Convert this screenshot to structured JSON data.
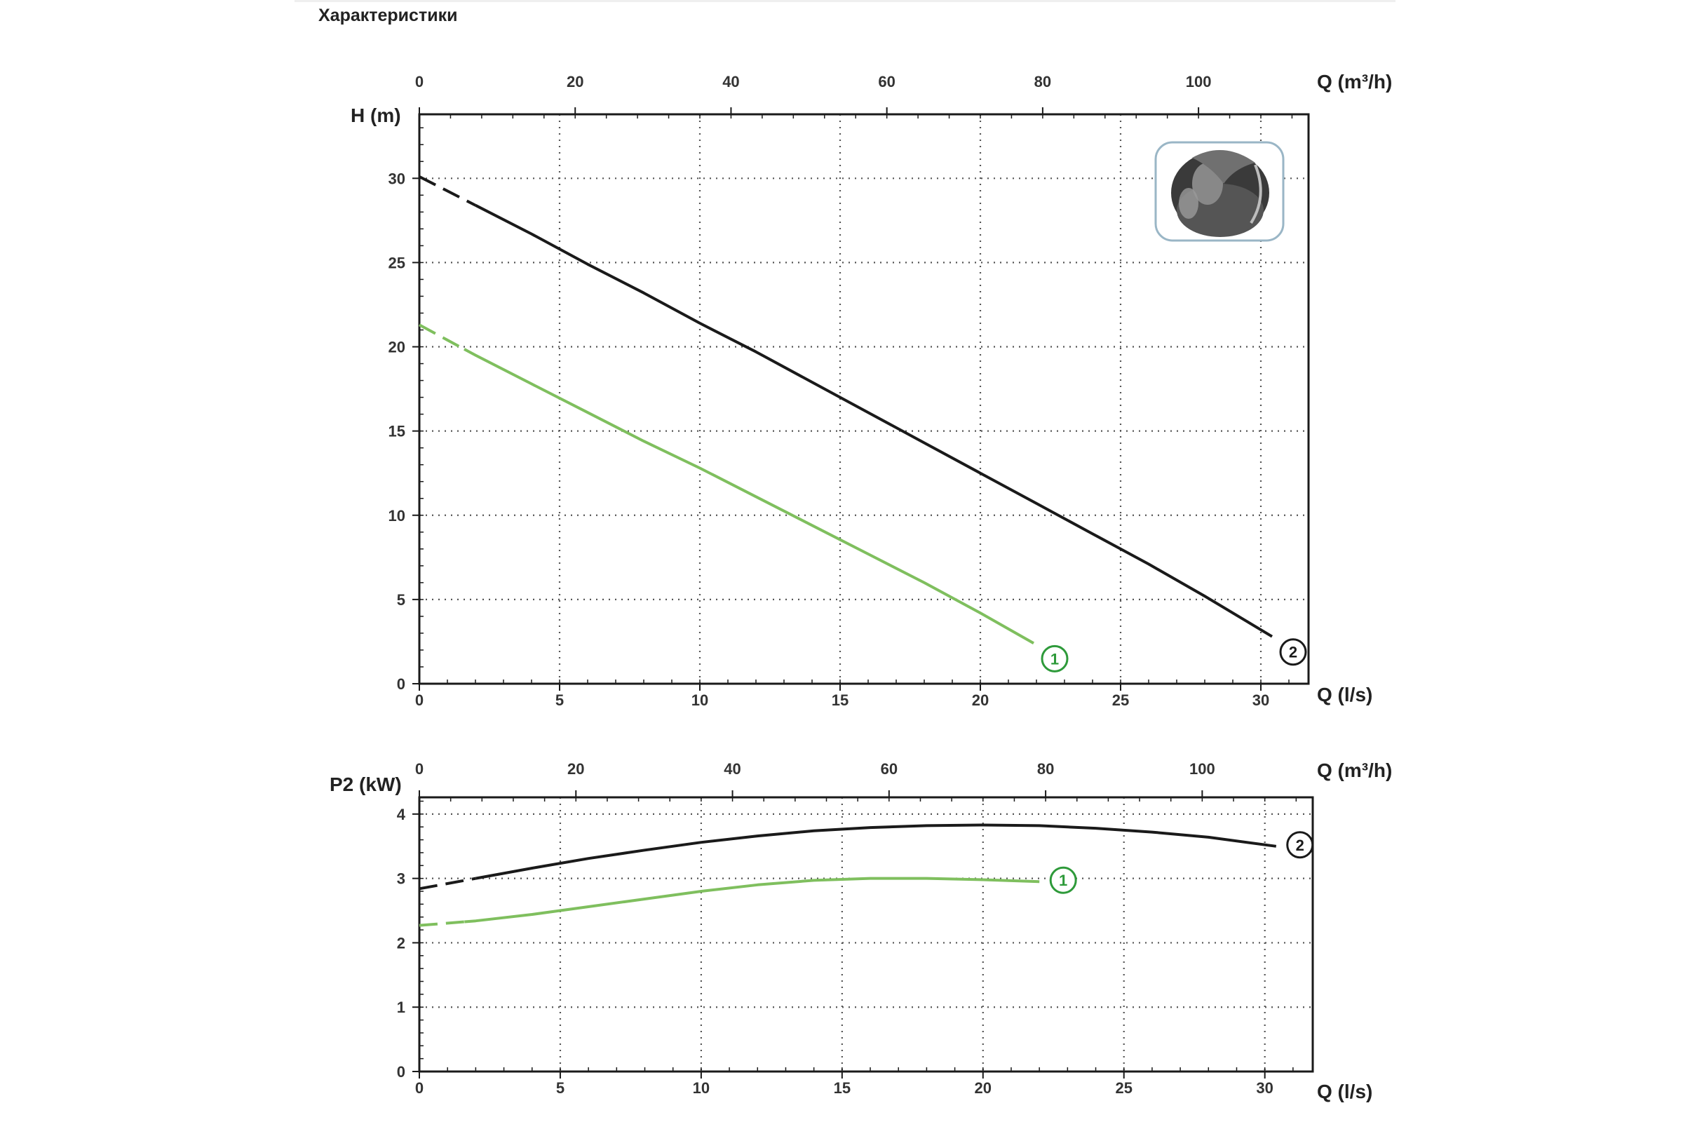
{
  "section_title": "Характеристики",
  "colors": {
    "series_1": "#7fbf5e",
    "series_1_marker": "#2e9a3a",
    "series_2": "#1a1a1a",
    "grid": "#555555",
    "frame": "#1a1a1a"
  },
  "inset_image": {
    "icon": "impeller-photo-icon",
    "border_color": "#9ab6c6"
  },
  "chart_data": [
    {
      "type": "line",
      "id": "head",
      "ylabel": "H (m)",
      "xlabel_bottom": "Q (l/s)",
      "xlabel_top": "Q (m³/h)",
      "xlim": [
        0,
        31.7
      ],
      "ylim": [
        0,
        33.8
      ],
      "xticks_bottom": [
        0,
        5,
        10,
        15,
        20,
        25,
        30
      ],
      "xticks_top": [
        0,
        20,
        40,
        60,
        80,
        100
      ],
      "top_tick_factor": 3.6,
      "yticks": [
        0,
        5,
        10,
        15,
        20,
        25,
        30
      ],
      "grid": true,
      "series": [
        {
          "marker": "1",
          "color_key": "series_1",
          "dashed_until": 1.6,
          "x": [
            0,
            2,
            4,
            6,
            8,
            10,
            12,
            14,
            16,
            18,
            20,
            21.9
          ],
          "y": [
            21.3,
            19.5,
            17.8,
            16.1,
            14.4,
            12.8,
            11.1,
            9.4,
            7.7,
            6.0,
            4.2,
            2.4
          ]
        },
        {
          "marker": "2",
          "color_key": "series_2",
          "dashed_until": 2.0,
          "x": [
            0,
            2,
            4,
            6,
            8,
            10,
            12,
            14,
            16,
            18,
            20,
            22,
            24,
            26,
            28,
            30.4
          ],
          "y": [
            30.1,
            28.4,
            26.7,
            24.9,
            23.2,
            21.4,
            19.7,
            17.9,
            16.1,
            14.3,
            12.5,
            10.7,
            8.9,
            7.1,
            5.2,
            2.8
          ]
        }
      ]
    },
    {
      "type": "line",
      "id": "power",
      "ylabel": "P2 (kW)",
      "xlabel_bottom": "Q (l/s)",
      "xlabel_top": "Q (m³/h)",
      "xlim": [
        0,
        31.7
      ],
      "ylim": [
        0,
        4.26
      ],
      "xticks_bottom": [
        0,
        5,
        10,
        15,
        20,
        25,
        30
      ],
      "xticks_top": [
        0,
        20,
        40,
        60,
        80,
        100
      ],
      "top_tick_factor": 3.6,
      "yticks": [
        0,
        1,
        2,
        3,
        4
      ],
      "grid": true,
      "series": [
        {
          "marker": "1",
          "color_key": "series_1",
          "dashed_until": 1.6,
          "x": [
            0,
            2,
            4,
            6,
            8,
            10,
            12,
            14,
            16,
            18,
            20,
            22
          ],
          "y": [
            2.27,
            2.34,
            2.44,
            2.56,
            2.68,
            2.8,
            2.9,
            2.97,
            3.0,
            3.0,
            2.98,
            2.95
          ]
        },
        {
          "marker": "2",
          "color_key": "series_2",
          "dashed_until": 2.0,
          "x": [
            0,
            2,
            4,
            6,
            8,
            10,
            12,
            14,
            16,
            18,
            20,
            22,
            24,
            26,
            28,
            30.4
          ],
          "y": [
            2.84,
            3.0,
            3.16,
            3.31,
            3.44,
            3.56,
            3.66,
            3.74,
            3.79,
            3.82,
            3.83,
            3.82,
            3.78,
            3.72,
            3.64,
            3.5
          ]
        }
      ]
    }
  ]
}
